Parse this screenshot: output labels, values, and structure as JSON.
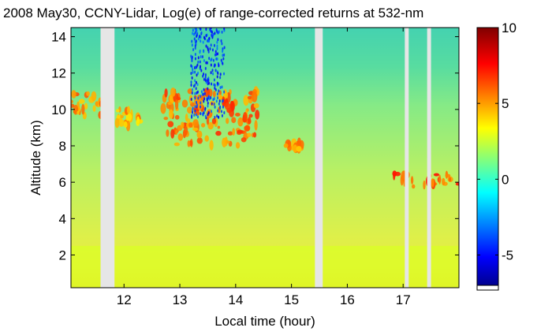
{
  "chart_data": {
    "type": "heatmap",
    "title": "2008 May30, CCNY-Lidar, Log(e) of range-corrected returns at 532-nm",
    "xlabel": "Local time (hour)",
    "ylabel": "Altitude (km)",
    "xlim": [
      11.05,
      18.0
    ],
    "ylim": [
      0.2,
      14.5
    ],
    "x_ticks": [
      12,
      13,
      14,
      15,
      16,
      17
    ],
    "x_tick_labels": [
      "12",
      "13",
      "14",
      "15",
      "16",
      "17"
    ],
    "y_ticks": [
      2,
      4,
      6,
      8,
      10,
      12,
      14
    ],
    "y_tick_labels": [
      "2",
      "4",
      "6",
      "8",
      "10",
      "12",
      "14"
    ],
    "colorbar": {
      "range": [
        -7,
        10
      ],
      "ticks": [
        -5,
        0,
        5,
        10
      ],
      "tick_labels": [
        "-5",
        "0",
        "5",
        "10"
      ],
      "colormap": "jet"
    },
    "data_gaps_hours": [
      [
        11.58,
        11.83
      ],
      [
        15.42,
        15.56
      ],
      [
        17.03,
        17.1
      ],
      [
        17.43,
        17.5
      ]
    ],
    "features": [
      {
        "kind": "cloud",
        "t_range": [
          11.05,
          11.6
        ],
        "alt_range_km": [
          9.6,
          10.9
        ],
        "value": 5.5
      },
      {
        "kind": "cloud",
        "t_range": [
          11.85,
          12.3
        ],
        "alt_range_km": [
          9.0,
          10.0
        ],
        "value": 5.0
      },
      {
        "kind": "cloud",
        "t_range": [
          12.7,
          14.4
        ],
        "alt_range_km": [
          8.0,
          11.0
        ],
        "value": 6.0
      },
      {
        "kind": "cloud",
        "t_range": [
          14.9,
          15.2
        ],
        "alt_range_km": [
          7.8,
          8.2
        ],
        "value": 5.5
      },
      {
        "kind": "cloud",
        "t_range": [
          16.8,
          18.0
        ],
        "alt_range_km": [
          5.7,
          6.5
        ],
        "value": 6.5
      },
      {
        "kind": "boundary-layer",
        "t_range": [
          11.05,
          18.0
        ],
        "alt_range_km": [
          0.2,
          2.5
        ],
        "value": 3.0
      },
      {
        "kind": "noise",
        "t_range": [
          13.2,
          13.8
        ],
        "alt_range_km": [
          9.5,
          14.5
        ],
        "value": -4.0
      }
    ]
  }
}
